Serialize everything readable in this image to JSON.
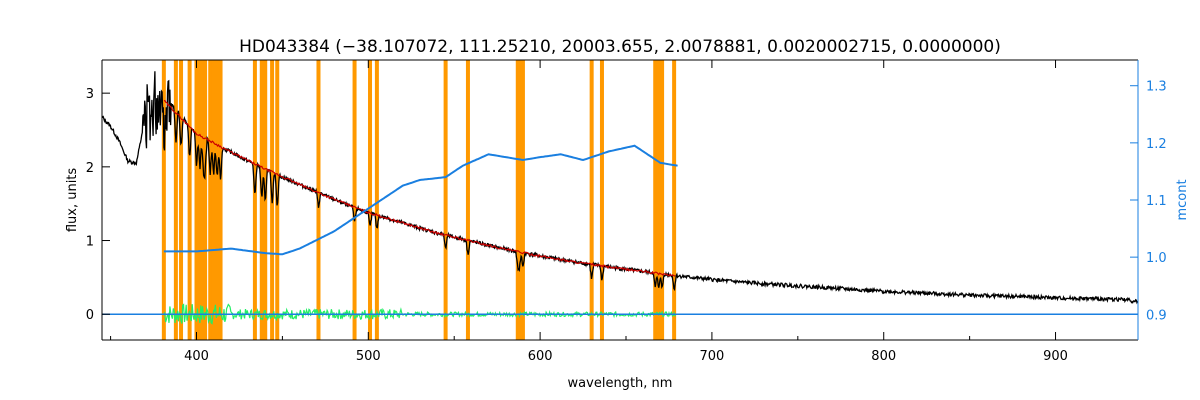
{
  "chart_data": {
    "type": "line",
    "title": "HD043384   (−38.107072, 111.25210, 20003.655, 2.0078881, 0.0020002715, 0.0000000)",
    "xlabel": "wavelength, nm",
    "ylabel": "flux, units",
    "y2label": "mcont",
    "xlim": [
      345,
      948
    ],
    "ylim": [
      -0.35,
      3.45
    ],
    "y2lim": [
      0.855,
      1.345
    ],
    "x_ticks": [
      400,
      500,
      600,
      700,
      800,
      900
    ],
    "y_ticks": [
      0,
      1,
      2,
      3
    ],
    "y2_ticks": [
      0.9,
      1.0,
      1.1,
      1.2,
      1.3
    ],
    "grid": false,
    "colors": {
      "observed": "#000000",
      "model": "#cc0000",
      "residual": "#22ee66",
      "mcont": "#1a7fe0",
      "mask": "#ff9900"
    },
    "masked_wavelengths": [
      381,
      388,
      391,
      396,
      400,
      402,
      404,
      405,
      408,
      410,
      412,
      414,
      434,
      438,
      440,
      444,
      447,
      471,
      492,
      501,
      505,
      545,
      558,
      587,
      588,
      590,
      630,
      636,
      667,
      669,
      671,
      678
    ],
    "series": [
      {
        "role": "observed",
        "x": [
          345,
          350,
          355,
          360,
          365,
          370,
          375,
          380,
          385,
          390,
          395,
          400,
          410,
          420,
          430,
          440,
          450,
          460,
          470,
          480,
          490,
          500,
          520,
          540,
          560,
          580,
          600,
          620,
          640,
          660,
          680,
          700,
          720,
          740,
          760,
          780,
          800,
          820,
          840,
          860,
          880,
          900,
          920,
          940,
          948
        ],
        "y": [
          2.68,
          2.55,
          2.35,
          2.08,
          2.05,
          2.65,
          2.85,
          2.98,
          2.86,
          2.72,
          2.58,
          2.45,
          2.32,
          2.2,
          2.08,
          1.97,
          1.86,
          1.76,
          1.66,
          1.56,
          1.46,
          1.38,
          1.24,
          1.1,
          0.99,
          0.88,
          0.79,
          0.71,
          0.64,
          0.58,
          0.52,
          0.47,
          0.43,
          0.4,
          0.37,
          0.34,
          0.31,
          0.29,
          0.27,
          0.25,
          0.24,
          0.22,
          0.21,
          0.2,
          0.17
        ]
      },
      {
        "role": "model",
        "x": [
          381,
          400,
          420,
          440,
          460,
          480,
          500,
          520,
          540,
          560,
          580,
          600,
          620,
          640,
          660,
          679
        ],
        "y": [
          2.9,
          2.45,
          2.2,
          1.97,
          1.76,
          1.56,
          1.38,
          1.24,
          1.1,
          0.99,
          0.88,
          0.79,
          0.71,
          0.64,
          0.58,
          0.52
        ]
      },
      {
        "role": "mcont",
        "axis": "right",
        "x": [
          381,
          400,
          420,
          440,
          450,
          460,
          480,
          500,
          520,
          530,
          545,
          555,
          570,
          590,
          600,
          612,
          625,
          640,
          655,
          670,
          680
        ],
        "y": [
          1.01,
          1.01,
          1.015,
          1.007,
          1.005,
          1.015,
          1.045,
          1.085,
          1.125,
          1.135,
          1.14,
          1.16,
          1.18,
          1.17,
          1.175,
          1.18,
          1.17,
          1.185,
          1.195,
          1.165,
          1.16
        ]
      },
      {
        "role": "mcont-flat",
        "axis": "right",
        "x": [
          345,
          948
        ],
        "y": [
          0.9,
          0.9
        ]
      },
      {
        "role": "residual",
        "x": [
          381,
          679
        ],
        "y": [
          0.0,
          0.0
        ]
      }
    ]
  }
}
